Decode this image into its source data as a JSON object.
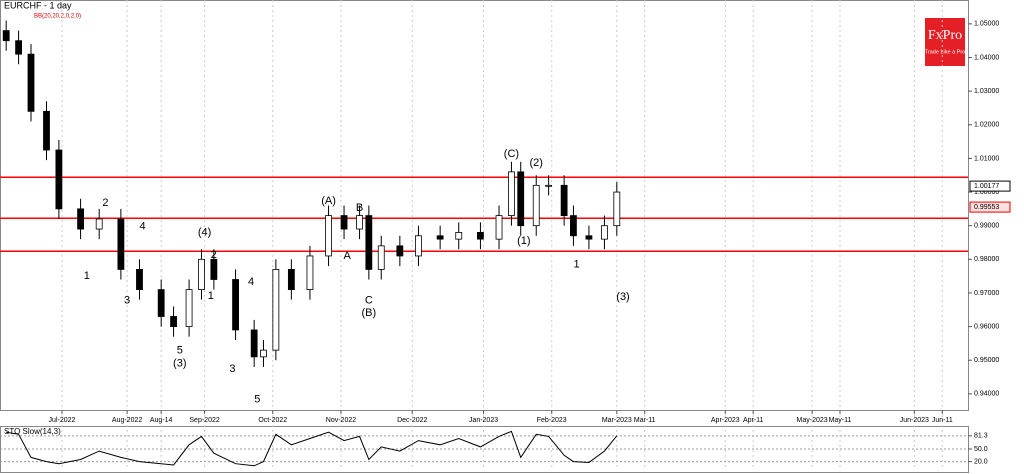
{
  "chart_data": [
    {
      "type": "candlestick",
      "title": "EURCHF - 1 day",
      "subtitle": "BB(20,20,2,0,2.0)",
      "x": [
        2,
        6,
        10,
        15,
        19,
        26,
        32,
        39,
        45,
        52,
        56,
        61,
        65,
        69,
        76,
        82,
        85,
        89,
        94,
        100,
        106,
        111,
        116,
        119,
        123,
        129,
        135,
        142,
        148,
        155,
        161,
        165,
        168,
        173,
        177,
        182,
        185,
        190,
        195,
        199
      ],
      "open": [
        1.048,
        1.045,
        1.041,
        1.024,
        1.0125,
        0.995,
        0.989,
        0.992,
        0.977,
        0.971,
        0.963,
        0.96,
        0.971,
        0.98,
        0.974,
        0.959,
        0.951,
        0.953,
        0.977,
        0.971,
        0.981,
        0.993,
        0.989,
        0.993,
        0.977,
        0.984,
        0.981,
        0.987,
        0.986,
        0.988,
        0.986,
        0.993,
        1.006,
        0.99,
        1.002,
        1.002,
        0.993,
        0.987,
        0.986,
        0.99
      ],
      "high": [
        1.051,
        1.048,
        1.044,
        1.027,
        1.0155,
        0.998,
        0.995,
        0.995,
        0.98,
        0.974,
        0.966,
        0.974,
        0.983,
        0.983,
        0.977,
        0.962,
        0.956,
        0.98,
        0.98,
        0.984,
        0.996,
        0.996,
        0.996,
        0.996,
        0.987,
        0.987,
        0.99,
        0.99,
        0.991,
        0.991,
        0.996,
        1.009,
        1.009,
        1.005,
        1.005,
        1.005,
        0.996,
        0.99,
        0.993,
        1.003
      ],
      "low": [
        1.042,
        1.038,
        1.021,
        1.0095,
        0.992,
        0.986,
        0.986,
        0.974,
        0.968,
        0.96,
        0.957,
        0.957,
        0.968,
        0.971,
        0.956,
        0.948,
        0.948,
        0.95,
        0.968,
        0.968,
        0.978,
        0.986,
        0.986,
        0.974,
        0.974,
        0.978,
        0.978,
        0.983,
        0.983,
        0.983,
        0.983,
        0.99,
        0.987,
        0.987,
        0.999,
        0.99,
        0.984,
        0.983,
        0.983,
        0.987
      ],
      "close": [
        1.045,
        1.041,
        1.024,
        1.0125,
        0.995,
        0.989,
        0.992,
        0.977,
        0.971,
        0.963,
        0.96,
        0.971,
        0.98,
        0.974,
        0.959,
        0.951,
        0.953,
        0.977,
        0.971,
        0.981,
        0.993,
        0.989,
        0.993,
        0.977,
        0.984,
        0.981,
        0.987,
        0.986,
        0.988,
        0.986,
        0.993,
        1.006,
        0.99,
        1.002,
        1.002,
        0.993,
        0.987,
        0.986,
        0.99,
        1.0
      ],
      "up_color": "#ffffff",
      "down_color": "#000000",
      "xlim": [
        0,
        312.3
      ],
      "xticks": [
        {
          "value": 20,
          "label": "Jul-2022"
        },
        {
          "value": 41,
          "label": "Aug-2022"
        },
        {
          "value": 52,
          "label": "Aug-14"
        },
        {
          "value": 66,
          "label": "Sep-2022"
        },
        {
          "value": 88,
          "label": "Oct-2022"
        },
        {
          "value": 110,
          "label": "Nov-2022"
        },
        {
          "value": 133,
          "label": "Dec-2022"
        },
        {
          "value": 156,
          "label": "Jan-2023"
        },
        {
          "value": 178,
          "label": "Feb-2023"
        },
        {
          "value": 199,
          "label": "Mar-2023"
        },
        {
          "value": 208,
          "label": "Mar-11"
        },
        {
          "value": 234,
          "label": "Apr-2023"
        },
        {
          "value": 243,
          "label": "Apr-11"
        },
        {
          "value": 262,
          "label": "May-2023"
        },
        {
          "value": 271,
          "label": "May-11"
        },
        {
          "value": 295,
          "label": "Jun-2023"
        },
        {
          "value": 304,
          "label": "Jun-11"
        }
      ],
      "ylim": [
        0.9352,
        1.0571
      ],
      "yticks": [
        {
          "value": 0.94,
          "label": "0.94000"
        },
        {
          "value": 0.95,
          "label": "0.95000"
        },
        {
          "value": 0.96,
          "label": "0.96000"
        },
        {
          "value": 0.97,
          "label": "0.97000"
        },
        {
          "value": 0.98,
          "label": "0.98000"
        },
        {
          "value": 0.99,
          "label": "0.99000"
        },
        {
          "value": 1.0,
          "label": "1.00000"
        },
        {
          "value": 1.01,
          "label": "1.01000"
        },
        {
          "value": 1.02,
          "label": "1.02000"
        },
        {
          "value": 1.03,
          "label": "1.03000"
        },
        {
          "value": 1.04,
          "label": "1.04000"
        },
        {
          "value": 1.05,
          "label": "1.05000"
        }
      ],
      "levels": [
        1.0044,
        0.9922,
        0.9824
      ],
      "level_color": "#ff0000",
      "price_labels": [
        {
          "value": 1.00177,
          "label": "1.00177"
        },
        {
          "value": 0.99553,
          "label": "0.99553"
        }
      ],
      "annotations": [
        {
          "text": "2",
          "x": 34,
          "y": 0.9967
        },
        {
          "text": "1",
          "x": 28,
          "y": 0.975
        },
        {
          "text": "3",
          "x": 41,
          "y": 0.9678
        },
        {
          "text": "4",
          "x": 46,
          "y": 0.9898
        },
        {
          "text": "5",
          "x": 58,
          "y": 0.9529
        },
        {
          "text": "(3)",
          "x": 58,
          "y": 0.949
        },
        {
          "text": "(4)",
          "x": 66,
          "y": 0.988
        },
        {
          "text": "2",
          "x": 69,
          "y": 0.9812
        },
        {
          "text": "1",
          "x": 68,
          "y": 0.969
        },
        {
          "text": "3",
          "x": 75,
          "y": 0.9473
        },
        {
          "text": "4",
          "x": 81,
          "y": 0.9732
        },
        {
          "text": "5",
          "x": 83,
          "y": 0.9383
        },
        {
          "text": "(A)",
          "x": 106,
          "y": 0.9973
        },
        {
          "text": "A",
          "x": 112,
          "y": 0.981
        },
        {
          "text": "B",
          "x": 116,
          "y": 0.9952
        },
        {
          "text": "C",
          "x": 119,
          "y": 0.9678
        },
        {
          "text": "(B)",
          "x": 119,
          "y": 0.964
        },
        {
          "text": "(C)",
          "x": 165,
          "y": 1.0113
        },
        {
          "text": "(1)",
          "x": 169,
          "y": 0.9854
        },
        {
          "text": "(2)",
          "x": 173,
          "y": 1.0086
        },
        {
          "text": "1",
          "x": 186,
          "y": 0.9785
        },
        {
          "text": "(3)",
          "x": 201,
          "y": 0.9687
        }
      ]
    },
    {
      "type": "line",
      "title": "STO Slow(14,3)",
      "x": [
        2,
        6,
        10,
        15,
        19,
        26,
        32,
        39,
        45,
        52,
        56,
        61,
        65,
        69,
        76,
        82,
        85,
        89,
        94,
        100,
        106,
        111,
        116,
        119,
        123,
        129,
        135,
        142,
        148,
        155,
        161,
        165,
        168,
        173,
        177,
        182,
        185,
        190,
        195,
        199
      ],
      "series": [
        {
          "color": "#000000",
          "values": [
            90,
            85,
            30,
            20,
            15,
            25,
            45,
            30,
            20,
            15,
            12,
            60,
            80,
            40,
            15,
            10,
            20,
            85,
            60,
            75,
            90,
            70,
            80,
            25,
            55,
            45,
            70,
            60,
            75,
            55,
            80,
            92,
            30,
            85,
            80,
            35,
            20,
            18,
            45,
            81.3
          ]
        }
      ],
      "xlim": [
        0,
        312.3
      ],
      "ylim": [
        0,
        100
      ],
      "yticks": [
        {
          "value": 20,
          "label": "20.0"
        },
        {
          "value": 50,
          "label": "50.0"
        },
        {
          "value": 81.3,
          "label": "81.3"
        }
      ]
    }
  ],
  "logo": {
    "name": "FxPro",
    "tagline": "Trade Like a Pro"
  }
}
